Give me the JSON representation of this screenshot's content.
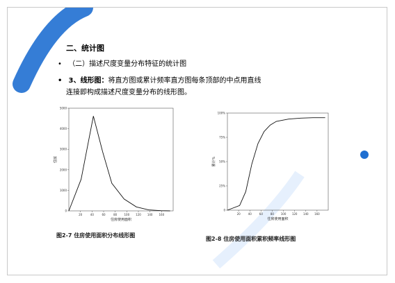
{
  "heading": "二、统计图",
  "bullet1": {
    "marker": "•",
    "text": "（二）描述尺度变量分布特征的统计图"
  },
  "bullet2": {
    "marker": "•",
    "highlight": "3、线形图：",
    "rest": "将直方图或累计频率直方图每条顶部的中点用直线"
  },
  "bullet2_cont": "连接即构成描述尺度变量分布的线形图。",
  "chart_data": [
    {
      "type": "line",
      "title": "",
      "xlabel": "住房使用面积",
      "ylabel": "住房",
      "x": [
        0,
        20,
        40,
        55,
        70,
        90,
        110,
        130,
        150,
        165
      ],
      "values": [
        0,
        1600,
        4800,
        3000,
        1400,
        600,
        200,
        50,
        10,
        0
      ],
      "xticks": [
        "20",
        "40",
        "60",
        "80",
        "100",
        "120",
        "140",
        "160"
      ],
      "yticks": [
        "0",
        "1000",
        "2000",
        "3000",
        "4000",
        "5000"
      ],
      "caption": "图2-7  住房使用面积分布线形图"
    },
    {
      "type": "line",
      "title": "",
      "xlabel": "住房使用面积",
      "ylabel": "累计%",
      "x": [
        0,
        20,
        30,
        40,
        50,
        60,
        70,
        80,
        100,
        120,
        140,
        160
      ],
      "values": [
        0,
        5,
        20,
        50,
        72,
        85,
        92,
        96,
        98.5,
        99.5,
        100,
        100
      ],
      "xticks": [
        "20",
        "40",
        "60",
        "80",
        "100",
        "120",
        "140",
        "160"
      ],
      "yticks": [
        "0",
        "25%",
        "50%",
        "75%",
        "100%"
      ],
      "caption": "图2-8  住房使用面积累积频率线形图"
    }
  ]
}
